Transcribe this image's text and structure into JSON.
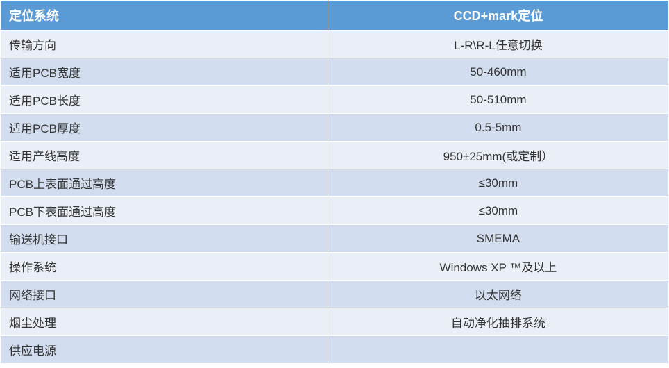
{
  "table": {
    "type": "table",
    "header_bg_color": "#5b9bd5",
    "header_text_color": "#ffffff",
    "row_even_bg_color": "#eaeff7",
    "row_odd_bg_color": "#d2deef",
    "border_color": "#ffffff",
    "text_color": "#333333",
    "header_fontsize": 18,
    "cell_fontsize": 17,
    "columns": [
      {
        "label": "定位系统",
        "align": "left",
        "width_pct": 49
      },
      {
        "label": "CCD+mark定位",
        "align": "center",
        "width_pct": 51
      }
    ],
    "rows": [
      {
        "label": "传输方向",
        "value": "L-R\\R-L任意切换"
      },
      {
        "label": "适用PCB宽度",
        "value": "50-460mm"
      },
      {
        "label": "适用PCB长度",
        "value": "50-510mm"
      },
      {
        "label": "适用PCB厚度",
        "value": "0.5-5mm"
      },
      {
        "label": "适用产线高度",
        "value": "950±25mm(或定制）"
      },
      {
        "label": "PCB上表面通过高度",
        "value": "≤30mm"
      },
      {
        "label": "PCB下表面通过高度",
        "value": "≤30mm"
      },
      {
        "label": "输送机接口",
        "value": "SMEMA"
      },
      {
        "label": "操作系统",
        "value": "Windows XP ™及以上"
      },
      {
        "label": "网络接口",
        "value": "以太网络"
      },
      {
        "label": "烟尘处理",
        "value": "自动净化抽排系统"
      },
      {
        "label": "供应电源",
        "value": ""
      }
    ]
  }
}
